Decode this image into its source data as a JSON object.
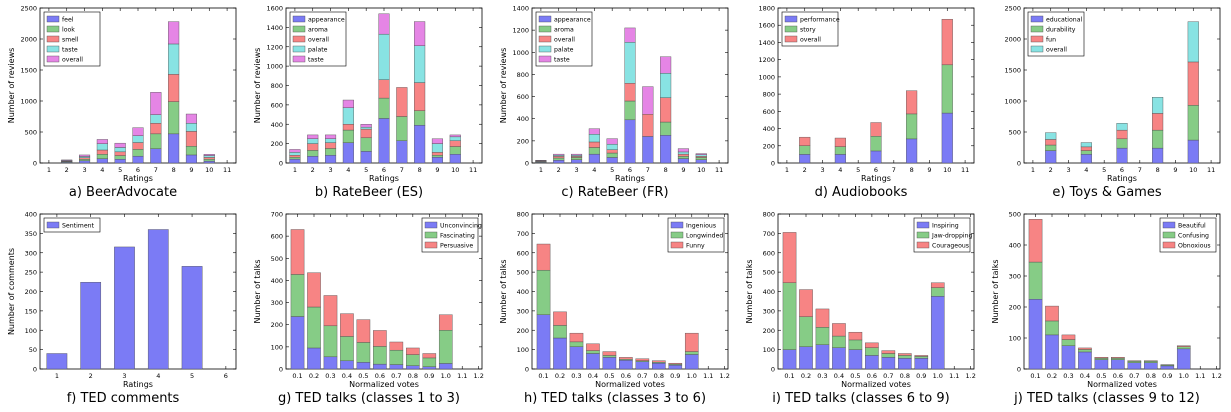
{
  "colors": {
    "blue": "#7b7bf5",
    "green": "#86cc86",
    "red": "#f78484",
    "cyan": "#88e3e3",
    "magenta": "#e585e5"
  },
  "chart_data": [
    {
      "type": "bar",
      "stacked": true,
      "caption": "a) BeerAdvocate",
      "xlabel": "Ratings",
      "ylabel": "Number of reviews",
      "x": [
        1,
        2,
        3,
        4,
        5,
        6,
        7,
        8,
        9,
        10,
        11
      ],
      "xlim": [
        0.5,
        11.5
      ],
      "ylim": [
        0,
        2500
      ],
      "yticks": [
        0,
        500,
        1000,
        1500,
        2000,
        2500
      ],
      "categories": [
        2,
        3,
        4,
        5,
        6,
        7,
        8,
        9,
        10
      ],
      "series": [
        {
          "name": "feel",
          "color": "blue",
          "values": [
            10,
            35,
            70,
            60,
            110,
            230,
            470,
            130,
            30
          ]
        },
        {
          "name": "look",
          "color": "green",
          "values": [
            10,
            25,
            70,
            60,
            110,
            240,
            520,
            140,
            30
          ]
        },
        {
          "name": "smell",
          "color": "red",
          "values": [
            10,
            25,
            70,
            60,
            110,
            170,
            440,
            240,
            30
          ]
        },
        {
          "name": "taste",
          "color": "cyan",
          "values": [
            10,
            20,
            100,
            70,
            110,
            140,
            490,
            130,
            30
          ]
        },
        {
          "name": "overall",
          "color": "magenta",
          "values": [
            10,
            25,
            70,
            70,
            130,
            360,
            360,
            150,
            20
          ]
        }
      ],
      "legend": "top-left",
      "caption_pos": 0
    },
    {
      "type": "bar",
      "stacked": true,
      "caption": "b) RateBeer (ES)",
      "xlabel": "Ratings",
      "ylabel": "Number of reviews",
      "x": [
        1,
        2,
        3,
        4,
        5,
        6,
        7,
        8,
        9,
        10,
        11
      ],
      "xlim": [
        0.5,
        11.5
      ],
      "ylim": [
        0,
        1600
      ],
      "yticks": [
        0,
        200,
        400,
        600,
        800,
        1000,
        1200,
        1400,
        1600
      ],
      "categories": [
        1,
        2,
        3,
        4,
        5,
        6,
        7,
        8,
        9,
        10
      ],
      "series": [
        {
          "name": "appearance",
          "color": "blue",
          "values": [
            40,
            70,
            80,
            210,
            120,
            460,
            230,
            390,
            60,
            90
          ]
        },
        {
          "name": "aroma",
          "color": "green",
          "values": [
            20,
            60,
            70,
            130,
            140,
            210,
            250,
            150,
            20,
            80
          ]
        },
        {
          "name": "overall",
          "color": "red",
          "values": [
            20,
            70,
            60,
            60,
            90,
            190,
            300,
            290,
            30,
            60
          ]
        },
        {
          "name": "palate",
          "color": "cyan",
          "values": [
            30,
            50,
            40,
            170,
            20,
            470,
            0,
            380,
            90,
            40
          ]
        },
        {
          "name": "taste",
          "color": "magenta",
          "values": [
            30,
            40,
            40,
            80,
            30,
            210,
            0,
            250,
            50,
            20
          ]
        }
      ],
      "legend": "top-left"
    },
    {
      "type": "bar",
      "stacked": true,
      "caption": "c) RateBeer (FR)",
      "xlabel": "Ratings",
      "ylabel": "Number of reviews",
      "x": [
        1,
        2,
        3,
        4,
        5,
        6,
        7,
        8,
        9,
        10,
        11
      ],
      "xlim": [
        0.5,
        11.5
      ],
      "ylim": [
        0,
        1400
      ],
      "yticks": [
        0,
        200,
        400,
        600,
        800,
        1000,
        1200,
        1400
      ],
      "categories": [
        1,
        2,
        3,
        4,
        5,
        6,
        7,
        8,
        9,
        10
      ],
      "series": [
        {
          "name": "appearance",
          "color": "blue",
          "values": [
            5,
            25,
            30,
            80,
            50,
            390,
            240,
            250,
            40,
            30
          ]
        },
        {
          "name": "aroma",
          "color": "green",
          "values": [
            5,
            20,
            20,
            60,
            40,
            170,
            0,
            120,
            20,
            20
          ]
        },
        {
          "name": "overall",
          "color": "red",
          "values": [
            5,
            15,
            10,
            50,
            30,
            160,
            200,
            220,
            20,
            10
          ]
        },
        {
          "name": "palate",
          "color": "cyan",
          "values": [
            5,
            10,
            10,
            70,
            50,
            370,
            0,
            220,
            20,
            15
          ]
        },
        {
          "name": "taste",
          "color": "magenta",
          "values": [
            5,
            10,
            10,
            50,
            50,
            130,
            250,
            150,
            30,
            10
          ]
        }
      ],
      "legend": "top-left"
    },
    {
      "type": "bar",
      "stacked": true,
      "caption": "d) Audiobooks",
      "xlabel": "Ratings",
      "ylabel": "",
      "x": [
        1,
        2,
        3,
        4,
        5,
        6,
        7,
        8,
        9,
        10,
        11
      ],
      "xlim": [
        0.5,
        11.5
      ],
      "ylim": [
        0,
        1800
      ],
      "yticks": [
        0,
        200,
        400,
        600,
        800,
        1000,
        1200,
        1400,
        1600,
        1800
      ],
      "categories": [
        2,
        4,
        6,
        8,
        10
      ],
      "series": [
        {
          "name": "performance",
          "color": "blue",
          "values": [
            100,
            100,
            140,
            280,
            580
          ]
        },
        {
          "name": "story",
          "color": "green",
          "values": [
            100,
            90,
            170,
            290,
            560
          ]
        },
        {
          "name": "overall",
          "color": "red",
          "values": [
            100,
            100,
            160,
            270,
            530
          ]
        }
      ],
      "legend": "top-left"
    },
    {
      "type": "bar",
      "stacked": true,
      "caption": "e) Toys & Games",
      "xlabel": "Ratings",
      "ylabel": "",
      "x": [
        1,
        2,
        3,
        4,
        5,
        6,
        7,
        8,
        9,
        10,
        11
      ],
      "xlim": [
        0.5,
        11.5
      ],
      "ylim": [
        0,
        2500
      ],
      "yticks": [
        0,
        500,
        1000,
        1500,
        2000,
        2500
      ],
      "categories": [
        2,
        4,
        6,
        8,
        10
      ],
      "series": [
        {
          "name": "educational",
          "color": "blue",
          "values": [
            200,
            140,
            240,
            240,
            370
          ]
        },
        {
          "name": "durability",
          "color": "green",
          "values": [
            90,
            60,
            150,
            290,
            560
          ]
        },
        {
          "name": "fun",
          "color": "red",
          "values": [
            90,
            60,
            140,
            270,
            700
          ]
        },
        {
          "name": "overall",
          "color": "cyan",
          "values": [
            110,
            70,
            110,
            260,
            650
          ]
        }
      ],
      "legend": "top-left"
    },
    {
      "type": "bar",
      "stacked": false,
      "caption": "f) TED comments",
      "xlabel": "Ratings",
      "ylabel": "Number of comments",
      "x": [
        1,
        2,
        3,
        4,
        5,
        6
      ],
      "xlim": [
        0.5,
        6.3
      ],
      "ylim": [
        0,
        400
      ],
      "yticks": [
        0,
        50,
        100,
        150,
        200,
        250,
        300,
        350,
        400
      ],
      "categories": [
        1,
        2,
        3,
        4,
        5
      ],
      "series": [
        {
          "name": "Sentiment",
          "color": "blue",
          "values": [
            40,
            224,
            315,
            360,
            265
          ]
        }
      ],
      "legend": "top-left"
    },
    {
      "type": "bar",
      "stacked": true,
      "caption": "g) TED talks (classes 1 to 3)",
      "xlabel": "Normalized votes",
      "ylabel": "Number of talks",
      "xticks": [
        "0.1",
        "0.2",
        "0.3",
        "0.4",
        "0.5",
        "0.6",
        "0.7",
        "0.8",
        "0.9",
        "1.0",
        "1.1",
        "1.2"
      ],
      "xlim": [
        0.03,
        1.22
      ],
      "ylim": [
        0,
        700
      ],
      "yticks": [
        0,
        100,
        200,
        300,
        400,
        500,
        600,
        700
      ],
      "categories": [
        0.1,
        0.2,
        0.3,
        0.4,
        0.5,
        0.6,
        0.7,
        0.8,
        0.9,
        1.0
      ],
      "series": [
        {
          "name": "Unconvincing",
          "color": "blue",
          "values": [
            237,
            95,
            55,
            37,
            30,
            22,
            20,
            15,
            10,
            25
          ]
        },
        {
          "name": "Fascinating",
          "color": "green",
          "values": [
            190,
            185,
            140,
            110,
            90,
            80,
            65,
            50,
            40,
            150
          ]
        },
        {
          "name": "Persuasive",
          "color": "red",
          "values": [
            203,
            155,
            137,
            103,
            103,
            72,
            37,
            30,
            20,
            70
          ]
        }
      ],
      "legend": "top-right"
    },
    {
      "type": "bar",
      "stacked": true,
      "caption": "h) TED talks (classes 3 to 6)",
      "xlabel": "Normalized votes",
      "ylabel": "Number of talks",
      "xticks": [
        "0.1",
        "0.2",
        "0.3",
        "0.4",
        "0.5",
        "0.6",
        "0.7",
        "0.8",
        "0.9",
        "1.0",
        "1.1",
        "1.2"
      ],
      "xlim": [
        0.03,
        1.22
      ],
      "ylim": [
        0,
        800
      ],
      "yticks": [
        0,
        100,
        200,
        300,
        400,
        500,
        600,
        700,
        800
      ],
      "categories": [
        0.1,
        0.2,
        0.3,
        0.4,
        0.5,
        0.6,
        0.7,
        0.8,
        0.9,
        1.0
      ],
      "series": [
        {
          "name": "Ingenious",
          "color": "blue",
          "values": [
            280,
            160,
            115,
            80,
            60,
            45,
            38,
            30,
            20,
            75
          ]
        },
        {
          "name": "Longwinded",
          "color": "green",
          "values": [
            230,
            65,
            25,
            15,
            10,
            5,
            5,
            5,
            5,
            15
          ]
        },
        {
          "name": "Funny",
          "color": "red",
          "values": [
            135,
            70,
            45,
            35,
            20,
            10,
            10,
            8,
            5,
            95
          ]
        }
      ],
      "legend": "top-right"
    },
    {
      "type": "bar",
      "stacked": true,
      "caption": "i) TED talks (classes 6 to 9)",
      "xlabel": "Normalized votes",
      "ylabel": "Number of talks",
      "xticks": [
        "0.1",
        "0.2",
        "0.3",
        "0.4",
        "0.5",
        "0.6",
        "0.7",
        "0.8",
        "0.9",
        "1.0",
        "1.1",
        "1.2"
      ],
      "xlim": [
        0.03,
        1.22
      ],
      "ylim": [
        0,
        800
      ],
      "yticks": [
        0,
        100,
        200,
        300,
        400,
        500,
        600,
        700,
        800
      ],
      "categories": [
        0.1,
        0.2,
        0.3,
        0.4,
        0.5,
        0.6,
        0.7,
        0.8,
        0.9,
        1.0
      ],
      "series": [
        {
          "name": "Inspiring",
          "color": "blue",
          "values": [
            100,
            115,
            125,
            110,
            100,
            70,
            60,
            55,
            55,
            375
          ]
        },
        {
          "name": "Jaw-dropping",
          "color": "green",
          "values": [
            345,
            155,
            90,
            60,
            50,
            40,
            20,
            15,
            10,
            45
          ]
        },
        {
          "name": "Courageous",
          "color": "red",
          "values": [
            260,
            140,
            95,
            65,
            40,
            25,
            15,
            10,
            5,
            25
          ]
        }
      ],
      "legend": "top-right"
    },
    {
      "type": "bar",
      "stacked": true,
      "caption": "j) TED talks (classes 9 to 12)",
      "xlabel": "Normalized votes",
      "ylabel": "Number of talks",
      "xticks": [
        "0.1",
        "0.2",
        "0.3",
        "0.4",
        "0.5",
        "0.6",
        "0.7",
        "0.8",
        "0.9",
        "1.0",
        "1.1",
        "1.2"
      ],
      "xlim": [
        0.03,
        1.22
      ],
      "ylim": [
        0,
        500
      ],
      "yticks": [
        0,
        100,
        200,
        300,
        400,
        500
      ],
      "categories": [
        0.1,
        0.2,
        0.3,
        0.4,
        0.5,
        0.6,
        0.7,
        0.8,
        0.9,
        1.0
      ],
      "series": [
        {
          "name": "Beautiful",
          "color": "blue",
          "values": [
            225,
            110,
            75,
            55,
            30,
            30,
            20,
            20,
            10,
            65
          ]
        },
        {
          "name": "Confusing",
          "color": "green",
          "values": [
            120,
            45,
            20,
            8,
            5,
            5,
            5,
            5,
            3,
            7
          ]
        },
        {
          "name": "Obnoxious",
          "color": "red",
          "values": [
            138,
            48,
            15,
            5,
            3,
            3,
            2,
            2,
            1,
            3
          ]
        }
      ],
      "legend": "top-right"
    }
  ]
}
